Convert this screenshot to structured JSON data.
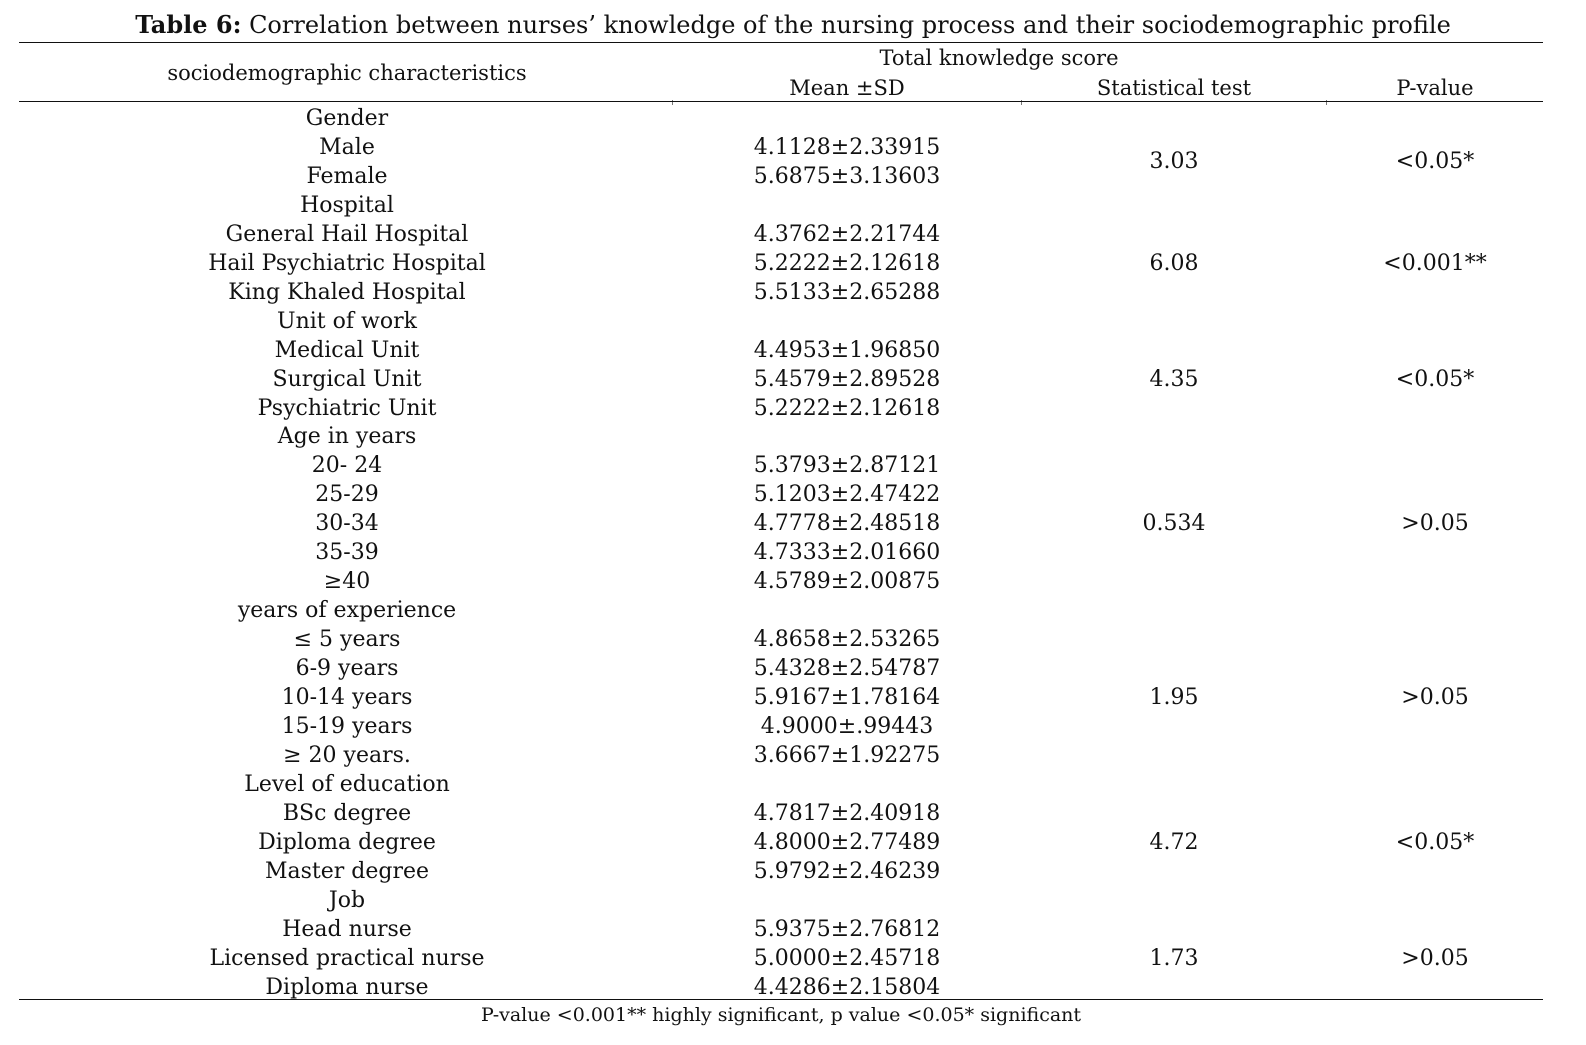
{
  "caption": {
    "label": "Table 6:",
    "text": " Correlation between nurses’ knowledge of the nursing process and their sociodemographic profile"
  },
  "header": {
    "group": "Total knowledge score",
    "col_label": "sociodemographic characteristics",
    "col_mean": "Mean ±SD",
    "col_stat": "Statistical test",
    "col_p": "P-value"
  },
  "groups": [
    {
      "title": "Gender",
      "stat": "3.03",
      "p": "<0.05*",
      "rows": [
        {
          "label": "Male",
          "mean": "4.1128±2.33915"
        },
        {
          "label": "Female",
          "mean": "5.6875±3.13603"
        }
      ]
    },
    {
      "title": "Hospital",
      "stat": "6.08",
      "p": "<0.001**",
      "rows": [
        {
          "label": "General Hail Hospital",
          "mean": "4.3762±2.21744"
        },
        {
          "label": "Hail Psychiatric Hospital",
          "mean": "5.2222±2.12618"
        },
        {
          "label": "King Khaled Hospital",
          "mean": "5.5133±2.65288"
        }
      ]
    },
    {
      "title": "Unit of work",
      "stat": "4.35",
      "p": "<0.05*",
      "rows": [
        {
          "label": "Medical Unit",
          "mean": "4.4953±1.96850"
        },
        {
          "label": "Surgical Unit",
          "mean": "5.4579±2.89528"
        },
        {
          "label": "Psychiatric Unit",
          "mean": "5.2222±2.12618"
        }
      ]
    },
    {
      "title": "Age in years",
      "stat": "0.534",
      "p": ">0.05",
      "rows": [
        {
          "label": "20- 24",
          "mean": "5.3793±2.87121"
        },
        {
          "label": "25-29",
          "mean": "5.1203±2.47422"
        },
        {
          "label": "30-34",
          "mean": "4.7778±2.48518"
        },
        {
          "label": "35-39",
          "mean": "4.7333±2.01660"
        },
        {
          "label": "≥40",
          "mean": "4.5789±2.00875"
        }
      ]
    },
    {
      "title": "years of experience",
      "stat": "1.95",
      "p": ">0.05",
      "rows": [
        {
          "label": "≤ 5 years",
          "mean": "4.8658±2.53265"
        },
        {
          "label": "6-9 years",
          "mean": "5.4328±2.54787"
        },
        {
          "label": "10-14 years",
          "mean": "5.9167±1.78164"
        },
        {
          "label": "15-19 years",
          "mean": "4.9000±.99443"
        },
        {
          "label": "≥ 20 years.",
          "mean": "3.6667±1.92275"
        }
      ]
    },
    {
      "title": "Level of education",
      "stat": "4.72",
      "p": "<0.05*",
      "rows": [
        {
          "label": "BSc degree",
          "mean": "4.7817±2.40918"
        },
        {
          "label": "Diploma degree",
          "mean": "4.8000±2.77489"
        },
        {
          "label": "Master degree",
          "mean": "5.9792±2.46239"
        }
      ]
    },
    {
      "title": "Job",
      "stat": "1.73",
      "p": ">0.05",
      "rows": [
        {
          "label": "Head nurse",
          "mean": "5.9375±2.76812"
        },
        {
          "label": "Licensed practical nurse",
          "mean": "5.0000±2.45718"
        },
        {
          "label": "Diploma nurse",
          "mean": "4.4286±2.15804"
        }
      ]
    }
  ],
  "footnote": "P-value <0.001** highly significant, p value <0.05* significant"
}
